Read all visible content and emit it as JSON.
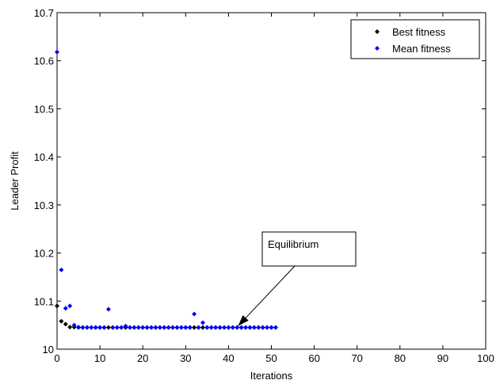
{
  "chart_data": {
    "type": "scatter",
    "title": "",
    "xlabel": "Iterations",
    "ylabel": "Leader Profit",
    "xlim": [
      0,
      100
    ],
    "ylim": [
      10,
      10.7
    ],
    "xticks": [
      0,
      10,
      20,
      30,
      40,
      50,
      60,
      70,
      80,
      90,
      100
    ],
    "yticks": [
      10,
      10.1,
      10.2,
      10.3,
      10.4,
      10.5,
      10.6,
      10.7
    ],
    "xtick_labels": [
      "0",
      "10",
      "20",
      "30",
      "40",
      "50",
      "60",
      "70",
      "80",
      "90",
      "100"
    ],
    "ytick_labels": [
      "10",
      "10.1",
      "10.2",
      "10.3",
      "10.4",
      "10.5",
      "10.6",
      "10.7"
    ],
    "grid": false,
    "legend_position": "top-right",
    "series": [
      {
        "name": "Best fitness",
        "color": "#000000",
        "marker": "diamond",
        "x": [
          0,
          1,
          2,
          3,
          4,
          5,
          6,
          7,
          8,
          9,
          10,
          11,
          12,
          13,
          14,
          15,
          16,
          17,
          18,
          19,
          20,
          21,
          22,
          23,
          24,
          25,
          26,
          27,
          28,
          29,
          30,
          31,
          32,
          33,
          34,
          35,
          36,
          37,
          38,
          39,
          40,
          41,
          42,
          43,
          44,
          45,
          46,
          47,
          48,
          49,
          50,
          51
        ],
        "y": [
          10.09,
          10.058,
          10.052,
          10.046,
          10.046,
          10.045,
          10.045,
          10.045,
          10.045,
          10.045,
          10.045,
          10.045,
          10.045,
          10.045,
          10.045,
          10.045,
          10.045,
          10.045,
          10.045,
          10.045,
          10.045,
          10.045,
          10.045,
          10.045,
          10.045,
          10.045,
          10.045,
          10.045,
          10.045,
          10.045,
          10.045,
          10.045,
          10.045,
          10.045,
          10.045,
          10.045,
          10.045,
          10.045,
          10.045,
          10.045,
          10.045,
          10.045,
          10.045,
          10.045,
          10.045,
          10.045,
          10.045,
          10.045,
          10.045,
          10.045,
          10.045,
          10.045
        ]
      },
      {
        "name": "Mean fitness",
        "color": "#0000ff",
        "marker": "diamond",
        "x": [
          0,
          1,
          2,
          3,
          4,
          5,
          6,
          7,
          8,
          9,
          10,
          11,
          12,
          13,
          14,
          15,
          16,
          17,
          18,
          19,
          20,
          21,
          22,
          23,
          24,
          25,
          26,
          27,
          28,
          29,
          30,
          31,
          32,
          33,
          34,
          35,
          36,
          37,
          38,
          39,
          40,
          41,
          42,
          43,
          44,
          45,
          46,
          47,
          48,
          49,
          50,
          51
        ],
        "y": [
          10.618,
          10.165,
          10.085,
          10.09,
          10.05,
          10.046,
          10.045,
          10.045,
          10.045,
          10.045,
          10.045,
          10.045,
          10.083,
          10.045,
          10.045,
          10.045,
          10.048,
          10.045,
          10.045,
          10.045,
          10.045,
          10.045,
          10.045,
          10.045,
          10.045,
          10.045,
          10.045,
          10.045,
          10.045,
          10.045,
          10.045,
          10.045,
          10.073,
          10.045,
          10.055,
          10.045,
          10.045,
          10.045,
          10.045,
          10.045,
          10.045,
          10.045,
          10.045,
          10.045,
          10.045,
          10.045,
          10.045,
          10.045,
          10.045,
          10.045,
          10.045,
          10.045
        ]
      }
    ],
    "annotations": [
      {
        "text": "Equilibrium",
        "target": [
          41.5,
          10.045
        ]
      }
    ]
  }
}
